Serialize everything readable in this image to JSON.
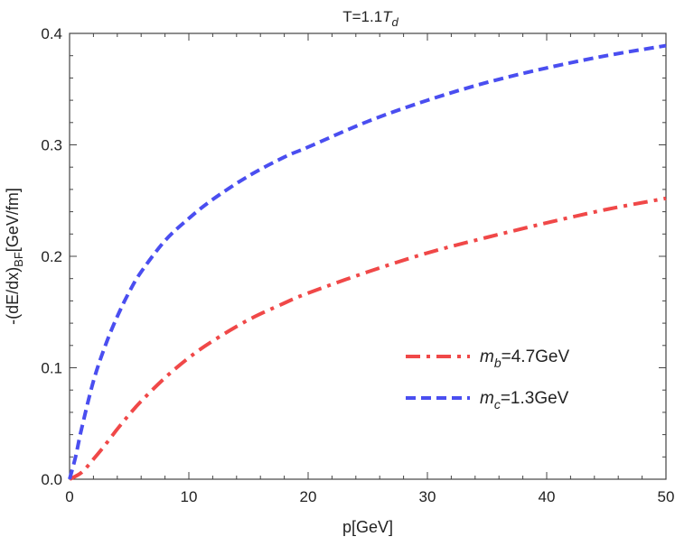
{
  "chart_data": {
    "type": "line",
    "title": {
      "main": "T=1.1",
      "italic": "T",
      "sub": "d"
    },
    "xlabel": "p[GeV]",
    "ylabel": {
      "main": "-(dE/dx)",
      "sub": "BF",
      "suffix": "[GeV/fm]"
    },
    "xlim": [
      0,
      50
    ],
    "ylim": [
      0,
      0.4
    ],
    "x_ticks": [
      0,
      10,
      20,
      30,
      40,
      50
    ],
    "x_tick_labels": [
      "0",
      "10",
      "20",
      "30",
      "40",
      "50"
    ],
    "y_ticks": [
      0,
      0.1,
      0.2,
      0.3,
      0.4
    ],
    "y_tick_labels": [
      "0.0",
      "0.1",
      "0.2",
      "0.3",
      "0.4"
    ],
    "grid": false,
    "legend_position": "lower-right",
    "series": [
      {
        "name": "m_b=4.7GeV",
        "legend": {
          "symbol": "m",
          "sub": "b",
          "rest": "=4.7GeV"
        },
        "color": "#f04848",
        "style": "dash-dot",
        "x": [
          0,
          1,
          2,
          3,
          4,
          5,
          6,
          8,
          10,
          12,
          15,
          18,
          20,
          25,
          30,
          35,
          40,
          45,
          50
        ],
        "y": [
          0,
          0.006,
          0.018,
          0.031,
          0.045,
          0.058,
          0.07,
          0.091,
          0.109,
          0.124,
          0.143,
          0.158,
          0.167,
          0.186,
          0.203,
          0.217,
          0.23,
          0.242,
          0.252
        ]
      },
      {
        "name": "m_c=1.3GeV",
        "legend": {
          "symbol": "m",
          "sub": "c",
          "rest": "=1.3GeV"
        },
        "color": "#4a4ef0",
        "style": "dashed",
        "x": [
          0,
          0.5,
          1,
          2,
          3,
          4,
          5,
          6,
          8,
          10,
          12,
          15,
          18,
          20,
          25,
          30,
          35,
          40,
          45,
          50
        ],
        "y": [
          0,
          0.02,
          0.045,
          0.088,
          0.12,
          0.146,
          0.168,
          0.186,
          0.214,
          0.234,
          0.251,
          0.272,
          0.289,
          0.298,
          0.321,
          0.34,
          0.356,
          0.369,
          0.38,
          0.389
        ]
      }
    ]
  }
}
